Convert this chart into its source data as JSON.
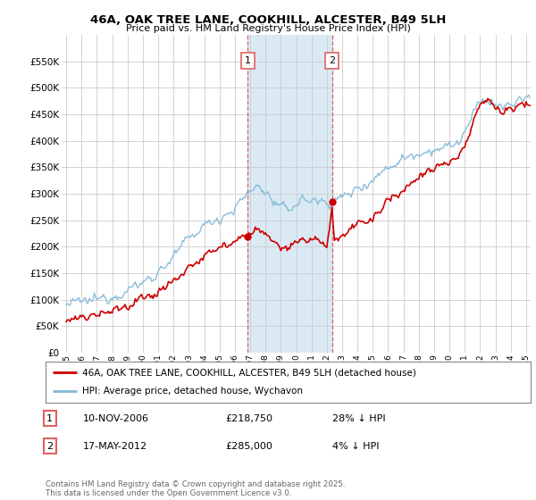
{
  "title": "46A, OAK TREE LANE, COOKHILL, ALCESTER, B49 5LH",
  "subtitle": "Price paid vs. HM Land Registry's House Price Index (HPI)",
  "ylim": [
    0,
    600000
  ],
  "yticks": [
    0,
    50000,
    100000,
    150000,
    200000,
    250000,
    300000,
    350000,
    400000,
    450000,
    500000,
    550000
  ],
  "sale1_date": "10-NOV-2006",
  "sale1_price": 218750,
  "sale1_hpi_diff": "28% ↓ HPI",
  "sale2_date": "17-MAY-2012",
  "sale2_price": 285000,
  "sale2_hpi_diff": "4% ↓ HPI",
  "legend_property": "46A, OAK TREE LANE, COOKHILL, ALCESTER, B49 5LH (detached house)",
  "legend_hpi": "HPI: Average price, detached house, Wychavon",
  "copyright": "Contains HM Land Registry data © Crown copyright and database right 2025.\nThis data is licensed under the Open Government Licence v3.0.",
  "property_color": "#cc0000",
  "hpi_color": "#7eb8d4",
  "background_color": "#ffffff",
  "grid_color": "#cccccc",
  "shade_color": "#daeaf5",
  "sale_vline_color": "#e06060"
}
